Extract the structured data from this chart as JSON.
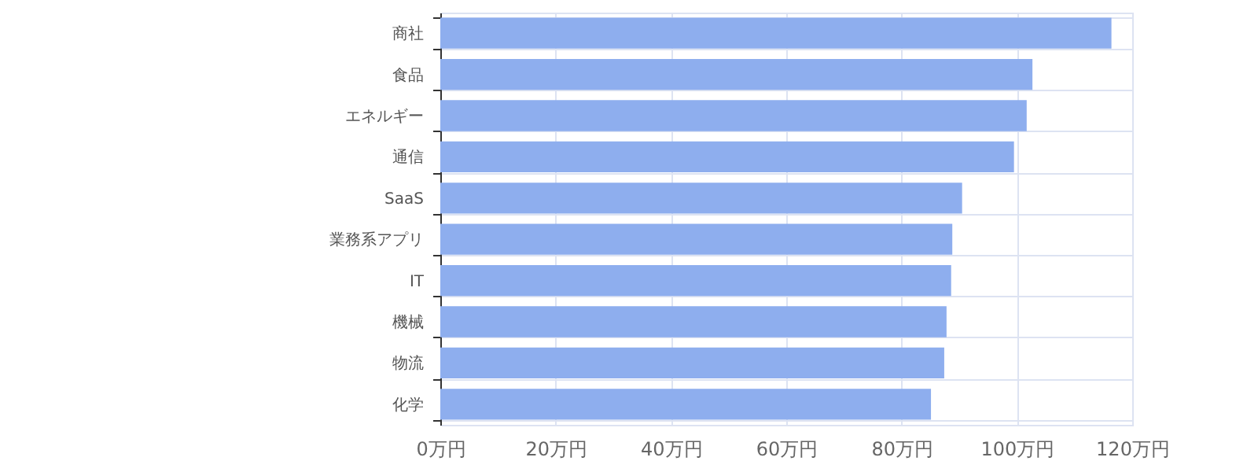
{
  "chart_data": {
    "type": "bar",
    "orientation": "horizontal",
    "categories": [
      "商社",
      "食品",
      "エネルギー",
      "通信",
      "SaaS",
      "業務系アプリ",
      "IT",
      "機械",
      "物流",
      "化学"
    ],
    "values": [
      116.4,
      102.7,
      101.7,
      99.5,
      90.5,
      88.8,
      88.6,
      87.8,
      87.4,
      85.1
    ],
    "color": "#8eaeee",
    "xlim": [
      0,
      120
    ],
    "xticks": [
      {
        "value": 0,
        "label": "0万円"
      },
      {
        "value": 20,
        "label": "20万円"
      },
      {
        "value": 40,
        "label": "40万円"
      },
      {
        "value": 60,
        "label": "60万円"
      },
      {
        "value": 80,
        "label": "80万円"
      },
      {
        "value": 100,
        "label": "100万円"
      },
      {
        "value": 120,
        "label": "120万円"
      }
    ],
    "grid": true
  }
}
